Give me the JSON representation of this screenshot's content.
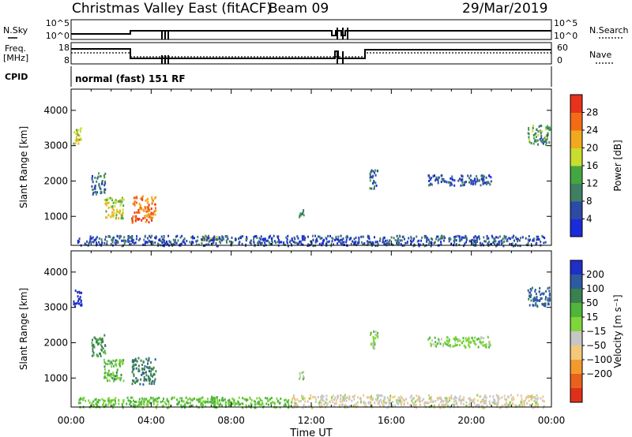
{
  "header": {
    "site": "Christmas Valley East (fitACF)",
    "beam": "Beam 09",
    "date": "29/Mar/2019"
  },
  "params": {
    "nsky_label": "N.Sky",
    "nsky_ticks": [
      "10^5",
      "10^0"
    ],
    "nsearch_label": "N.Search",
    "nsearch_ticks": [
      "10^5",
      "10^0"
    ],
    "freq_label": "Freq.",
    "freq_unit": "[MHz]",
    "freq_ticks": [
      "18",
      "8"
    ],
    "nave_label": "Nave",
    "nave_ticks": [
      "60",
      "0"
    ],
    "cpid_label": "CPID",
    "cpid_value": "normal (fast) 151 RF"
  },
  "chart_data": [
    {
      "type": "heatmap",
      "name": "power",
      "ylabel": "Slant Range [km]",
      "yticks": [
        "1000",
        "2000",
        "3000",
        "4000"
      ],
      "ylim": [
        180,
        4600
      ],
      "xlim": [
        0,
        24
      ],
      "colorbar": {
        "label": "Power [dB]",
        "ticks": [
          "4",
          "8",
          "12",
          "16",
          "20",
          "24",
          "28"
        ],
        "colors": [
          "#1a2bdc",
          "#2c4aa6",
          "#3f7f64",
          "#43a641",
          "#c9dd2f",
          "#f1a91f",
          "#f46b16",
          "#e8321b"
        ]
      },
      "patches": [
        {
          "t0": 0.1,
          "t1": 0.5,
          "r0": 3050,
          "r1": 3550,
          "value": 18
        },
        {
          "t0": 1.0,
          "t1": 1.7,
          "r0": 1650,
          "r1": 2250,
          "value": 8
        },
        {
          "t0": 1.6,
          "t1": 2.6,
          "r0": 950,
          "r1": 1550,
          "value": 18
        },
        {
          "t0": 3.0,
          "t1": 4.2,
          "r0": 850,
          "r1": 1600,
          "value": 26
        },
        {
          "t0": 11.3,
          "t1": 11.6,
          "r0": 1000,
          "r1": 1250,
          "value": 10
        },
        {
          "t0": 14.9,
          "t1": 15.3,
          "r0": 1800,
          "r1": 2350,
          "value": 8
        },
        {
          "t0": 17.8,
          "t1": 21.0,
          "r0": 1900,
          "r1": 2200,
          "value": 6
        },
        {
          "t0": 22.8,
          "t1": 23.9,
          "r0": 3050,
          "r1": 3600,
          "value": 12
        },
        {
          "t0": 6.5,
          "t1": 7.3,
          "r0": 350,
          "r1": 500,
          "value": 18
        },
        {
          "t0": 0.3,
          "t1": 23.7,
          "r0": 190,
          "r1": 480,
          "value": 6
        }
      ]
    },
    {
      "type": "heatmap",
      "name": "velocity",
      "xlabel": "Time UT",
      "xticks": [
        "00:00",
        "04:00",
        "08:00",
        "12:00",
        "16:00",
        "20:00",
        "00:00"
      ],
      "ylabel": "Slant Range [km]",
      "yticks": [
        "1000",
        "2000",
        "3000",
        "4000"
      ],
      "ylim": [
        180,
        4600
      ],
      "xlim": [
        0,
        24
      ],
      "colorbar": {
        "label": "Velocity [m s⁻¹]",
        "ticks": [
          "200",
          "100",
          "50",
          "15",
          "−15",
          "−50",
          "−100",
          "−200"
        ],
        "colors": [
          "#1f2fc8",
          "#2e5aa0",
          "#3b8050",
          "#4fb53b",
          "#7ed63a",
          "#c6c6c6",
          "#f3c87a",
          "#f39a2e",
          "#e8621b",
          "#e0301c"
        ]
      },
      "patches": [
        {
          "t0": 0.1,
          "t1": 0.5,
          "r0": 3050,
          "r1": 3550,
          "value": 230
        },
        {
          "t0": 1.0,
          "t1": 1.7,
          "r0": 1650,
          "r1": 2250,
          "value": 60
        },
        {
          "t0": 1.6,
          "t1": 2.6,
          "r0": 950,
          "r1": 1550,
          "value": 30
        },
        {
          "t0": 3.0,
          "t1": 4.2,
          "r0": 850,
          "r1": 1600,
          "value": 80
        },
        {
          "t0": 11.3,
          "t1": 11.6,
          "r0": 1000,
          "r1": 1250,
          "value": 0
        },
        {
          "t0": 14.9,
          "t1": 15.3,
          "r0": 1800,
          "r1": 2350,
          "value": 0
        },
        {
          "t0": 17.8,
          "t1": 21.0,
          "r0": 1900,
          "r1": 2200,
          "value": 0
        },
        {
          "t0": 22.8,
          "t1": 23.9,
          "r0": 3050,
          "r1": 3600,
          "value": 120
        },
        {
          "t0": 6.5,
          "t1": 7.3,
          "r0": 350,
          "r1": 500,
          "value": 30
        },
        {
          "t0": 0.3,
          "t1": 11.0,
          "r0": 190,
          "r1": 480,
          "value": 20
        },
        {
          "t0": 11.0,
          "t1": 23.7,
          "r0": 190,
          "r1": 550,
          "value": -40
        }
      ]
    }
  ]
}
